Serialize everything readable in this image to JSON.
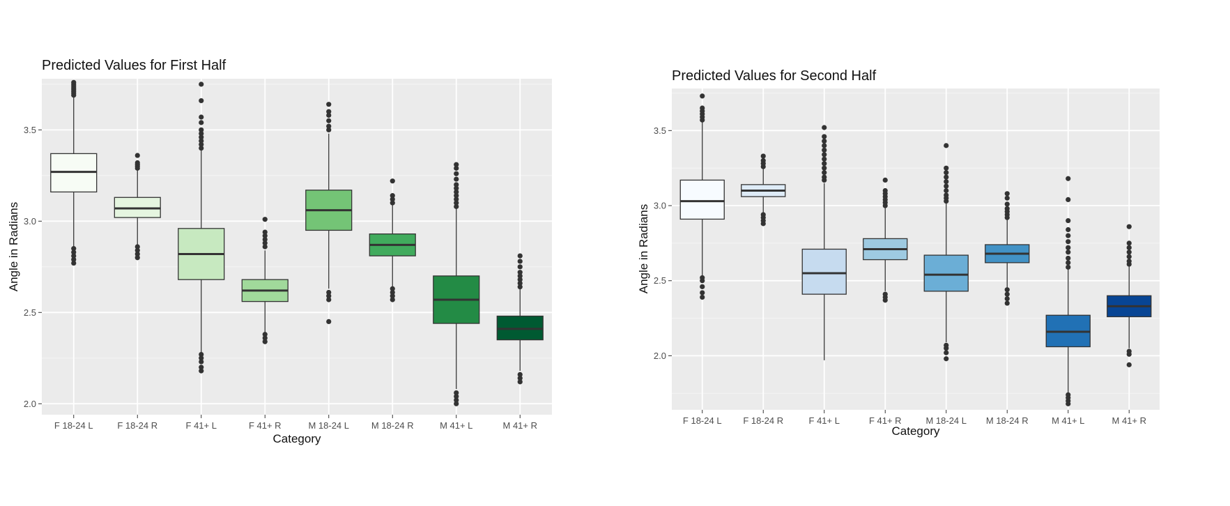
{
  "chart_data": [
    {
      "type": "box",
      "title": "Predicted Values for First Half",
      "xlabel": "Category",
      "ylabel": "Angle in Radians",
      "ylim": [
        1.94,
        3.78
      ],
      "yticks": [
        "2.0",
        "2.5",
        "3.0",
        "3.5"
      ],
      "grid": true,
      "categories": [
        "F 18-24 L",
        "F 18-24 R",
        "F 41+ L",
        "F 41+ R",
        "M 18-24 L",
        "M 18-24 R",
        "M 41+ L",
        "M 41+ R"
      ],
      "fill_colors": [
        "#f7fcf5",
        "#e5f5e0",
        "#c7e9c0",
        "#a1d99b",
        "#74c476",
        "#41ab5d",
        "#238b45",
        "#005a32"
      ],
      "boxes": [
        {
          "q1": 3.16,
          "median": 3.27,
          "q3": 3.37,
          "whisker_low": 2.85,
          "whisker_high": 3.68,
          "outliers": [
            2.77,
            2.79,
            2.81,
            2.83,
            2.85,
            3.69,
            3.7,
            3.71,
            3.72,
            3.73,
            3.74,
            3.75,
            3.76
          ]
        },
        {
          "q1": 3.02,
          "median": 3.07,
          "q3": 3.13,
          "whisker_low": 2.86,
          "whisker_high": 3.28,
          "outliers": [
            2.8,
            2.82,
            2.84,
            2.86,
            3.29,
            3.3,
            3.31,
            3.32,
            3.36
          ]
        },
        {
          "q1": 2.68,
          "median": 2.82,
          "q3": 2.96,
          "whisker_low": 2.27,
          "whisker_high": 3.39,
          "outliers": [
            2.18,
            2.2,
            2.23,
            2.25,
            2.27,
            3.4,
            3.42,
            3.44,
            3.46,
            3.48,
            3.5,
            3.54,
            3.57,
            3.66,
            3.75
          ]
        },
        {
          "q1": 2.56,
          "median": 2.62,
          "q3": 2.68,
          "whisker_low": 2.39,
          "whisker_high": 2.84,
          "outliers": [
            2.34,
            2.36,
            2.38,
            2.86,
            2.88,
            2.9,
            2.92,
            2.94,
            3.01
          ]
        },
        {
          "q1": 2.95,
          "median": 3.06,
          "q3": 3.17,
          "whisker_low": 2.63,
          "whisker_high": 3.48,
          "outliers": [
            2.45,
            2.57,
            2.59,
            2.61,
            3.5,
            3.52,
            3.55,
            3.58,
            3.6,
            3.64
          ]
        },
        {
          "q1": 2.81,
          "median": 2.87,
          "q3": 2.93,
          "whisker_low": 2.64,
          "whisker_high": 3.09,
          "outliers": [
            2.57,
            2.59,
            2.61,
            2.63,
            3.1,
            3.12,
            3.14,
            3.22
          ]
        },
        {
          "q1": 2.44,
          "median": 2.57,
          "q3": 2.7,
          "whisker_low": 2.08,
          "whisker_high": 3.07,
          "outliers": [
            2.0,
            2.02,
            2.04,
            2.06,
            3.08,
            3.1,
            3.12,
            3.14,
            3.16,
            3.18,
            3.2,
            3.23,
            3.26,
            3.29,
            3.31
          ]
        },
        {
          "q1": 2.35,
          "median": 2.41,
          "q3": 2.48,
          "whisker_low": 2.18,
          "whisker_high": 2.63,
          "outliers": [
            2.12,
            2.14,
            2.16,
            2.64,
            2.66,
            2.68,
            2.7,
            2.72,
            2.75,
            2.78,
            2.81
          ]
        }
      ]
    },
    {
      "type": "box",
      "title": "Predicted Values for Second Half",
      "xlabel": "Category",
      "ylabel": "Angle in Radians",
      "ylim": [
        1.64,
        3.78
      ],
      "yticks": [
        "2.0",
        "2.5",
        "3.0",
        "3.5"
      ],
      "grid": true,
      "categories": [
        "F 18-24 L",
        "F 18-24 R",
        "F 41+ L",
        "F 41+ R",
        "M 18-24 L",
        "M 18-24 R",
        "M 41+ L",
        "M 41+ R"
      ],
      "fill_colors": [
        "#f7fbff",
        "#deebf7",
        "#c6dbef",
        "#9ecae1",
        "#6baed6",
        "#4292c6",
        "#2171b5",
        "#084594"
      ],
      "boxes": [
        {
          "q1": 2.91,
          "median": 3.03,
          "q3": 3.17,
          "whisker_low": 2.53,
          "whisker_high": 3.56,
          "outliers": [
            2.39,
            2.42,
            2.46,
            2.5,
            2.52,
            3.57,
            3.59,
            3.61,
            3.63,
            3.65,
            3.73
          ]
        },
        {
          "q1": 3.06,
          "median": 3.1,
          "q3": 3.14,
          "whisker_low": 2.95,
          "whisker_high": 3.25,
          "outliers": [
            2.88,
            2.9,
            2.92,
            2.94,
            3.26,
            3.28,
            3.3,
            3.33
          ]
        },
        {
          "q1": 2.41,
          "median": 2.55,
          "q3": 2.71,
          "whisker_low": 1.97,
          "whisker_high": 3.15,
          "outliers": [
            3.17,
            3.19,
            3.22,
            3.25,
            3.28,
            3.31,
            3.34,
            3.37,
            3.4,
            3.43,
            3.46,
            3.52
          ]
        },
        {
          "q1": 2.64,
          "median": 2.71,
          "q3": 2.78,
          "whisker_low": 2.43,
          "whisker_high": 2.99,
          "outliers": [
            2.37,
            2.39,
            2.41,
            3.0,
            3.02,
            3.04,
            3.06,
            3.08,
            3.1,
            3.17
          ]
        },
        {
          "q1": 2.43,
          "median": 2.54,
          "q3": 2.67,
          "whisker_low": 2.09,
          "whisker_high": 3.02,
          "outliers": [
            1.98,
            2.02,
            2.05,
            2.07,
            3.03,
            3.05,
            3.07,
            3.1,
            3.13,
            3.16,
            3.19,
            3.22,
            3.25,
            3.4
          ]
        },
        {
          "q1": 2.62,
          "median": 2.68,
          "q3": 2.74,
          "whisker_low": 2.45,
          "whisker_high": 2.91,
          "outliers": [
            2.35,
            2.38,
            2.41,
            2.44,
            2.92,
            2.94,
            2.96,
            2.98,
            3.01,
            3.05,
            3.08
          ]
        },
        {
          "q1": 2.06,
          "median": 2.16,
          "q3": 2.27,
          "whisker_low": 1.75,
          "whisker_high": 2.58,
          "outliers": [
            1.68,
            1.7,
            1.72,
            1.74,
            2.59,
            2.62,
            2.65,
            2.69,
            2.72,
            2.76,
            2.8,
            2.84,
            2.9,
            3.04,
            3.18
          ]
        },
        {
          "q1": 2.26,
          "median": 2.33,
          "q3": 2.4,
          "whisker_low": 2.05,
          "whisker_high": 2.6,
          "outliers": [
            1.94,
            2.01,
            2.03,
            2.61,
            2.63,
            2.66,
            2.69,
            2.72,
            2.75,
            2.86
          ]
        }
      ]
    }
  ]
}
